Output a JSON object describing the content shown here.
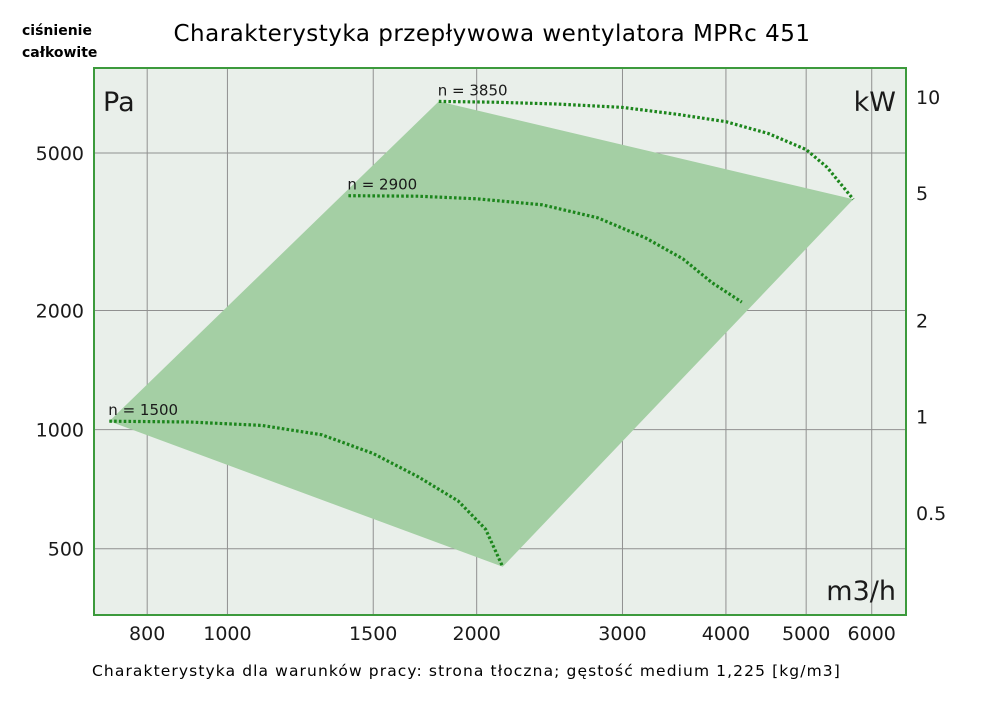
{
  "chart_data": {
    "type": "line",
    "title": "Charakterystyka przepływowa wentylatora MPRc 451",
    "ylabel": "ciśnienie całkowite",
    "y_unit": "Pa",
    "y2_unit": "kW",
    "x_unit": "m3/h",
    "x_scale": "log",
    "y_scale": "log",
    "xlim": [
      690,
      6600
    ],
    "ylim": [
      340,
      8200
    ],
    "x_ticks": [
      800,
      1000,
      1500,
      2000,
      3000,
      4000,
      5000,
      6000
    ],
    "x_tick_labels": [
      "800",
      "1000",
      "1500",
      "2000",
      "3000",
      "4000",
      "5000",
      "6000"
    ],
    "y_ticks": [
      500,
      1000,
      2000,
      5000
    ],
    "y_tick_labels": [
      "500",
      "1000",
      "2000",
      "5000"
    ],
    "y2_ticks": [
      0.5,
      1,
      2,
      5,
      10
    ],
    "y2_tick_labels": [
      "0.5",
      "1",
      "2",
      "5",
      "10"
    ],
    "y2_lim": [
      0.24,
      12.3
    ],
    "series": [
      {
        "name": "n = 1500",
        "label": "n = 1500",
        "x": [
          720,
          900,
          1100,
          1300,
          1500,
          1700,
          1900,
          2050,
          2150
        ],
        "y": [
          1050,
          1045,
          1025,
          970,
          870,
          760,
          660,
          560,
          450
        ]
      },
      {
        "name": "n = 2900",
        "label": "n = 2900",
        "x": [
          1400,
          1700,
          2000,
          2400,
          2800,
          3200,
          3550,
          3850,
          4180
        ],
        "y": [
          3900,
          3890,
          3830,
          3700,
          3430,
          3050,
          2700,
          2350,
          2100
        ]
      },
      {
        "name": "n = 3850",
        "label": "n = 3850",
        "x": [
          1800,
          2100,
          2500,
          3000,
          3500,
          4000,
          4500,
          5000,
          5300,
          5700
        ],
        "y": [
          6750,
          6720,
          6650,
          6520,
          6260,
          6000,
          5600,
          5100,
          4600,
          3820
        ]
      }
    ],
    "operating_region": {
      "x": [
        720,
        1800,
        5700,
        2150
      ],
      "y": [
        1050,
        6750,
        3820,
        450
      ]
    },
    "grid": true,
    "colors": {
      "region": "#a4cfa4",
      "plot_bg": "#e9efea",
      "frame": "#3c9a3c",
      "curve": "#1c861c",
      "grid": "#909090"
    }
  },
  "header": {
    "ylabel_line1": "ciśnienie",
    "ylabel_line2": "całkowite"
  },
  "footnote": "Charakterystyka dla warunków pracy: strona tłoczna; gęstość medium 1,225 [kg/m3]"
}
